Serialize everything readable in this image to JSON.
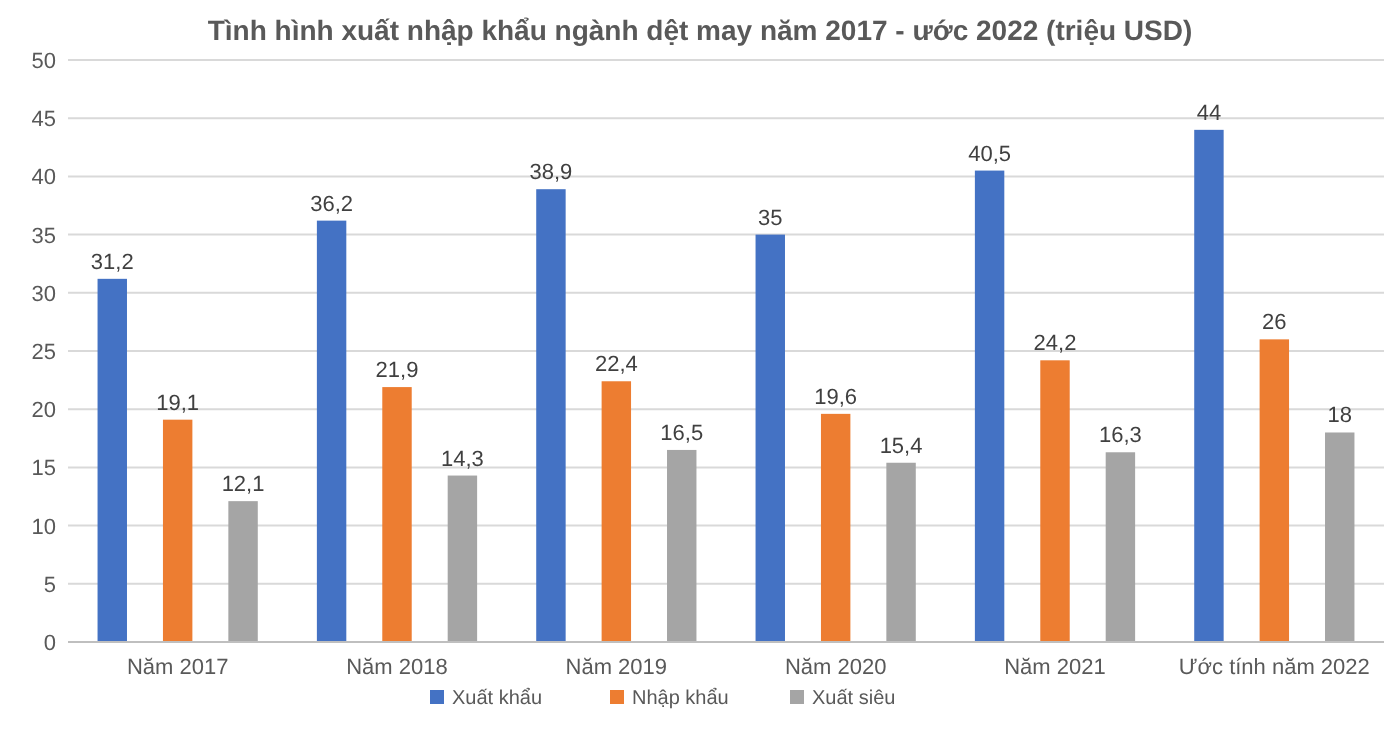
{
  "chart_data": {
    "type": "bar",
    "title": "Tình hình xuất nhập khẩu ngành dệt may năm 2017 - ước 2022 (triệu USD)",
    "categories": [
      "Năm 2017",
      "Năm 2018",
      "Năm 2019",
      "Năm 2020",
      "Năm 2021",
      "Ước tính năm 2022"
    ],
    "series": [
      {
        "name": "Xuất khẩu",
        "color": "#4472c4",
        "values": [
          31.2,
          36.2,
          38.9,
          35,
          40.5,
          44
        ],
        "value_labels": [
          "31,2",
          "36,2",
          "38,9",
          "35",
          "40,5",
          "44"
        ]
      },
      {
        "name": "Nhập khẩu",
        "color": "#ed7d31",
        "values": [
          19.1,
          21.9,
          22.4,
          19.6,
          24.2,
          26
        ],
        "value_labels": [
          "19,1",
          "21,9",
          "22,4",
          "19,6",
          "24,2",
          "26"
        ]
      },
      {
        "name": "Xuất siêu",
        "color": "#a5a5a5",
        "values": [
          12.1,
          14.3,
          16.5,
          15.4,
          16.3,
          18
        ],
        "value_labels": [
          "12,1",
          "14,3",
          "16,5",
          "15,4",
          "16,3",
          "18"
        ]
      }
    ],
    "ylim": [
      0,
      50
    ],
    "yticks": [
      0,
      5,
      10,
      15,
      20,
      25,
      30,
      35,
      40,
      45,
      50
    ],
    "grid": "y",
    "legend": "bottom"
  }
}
